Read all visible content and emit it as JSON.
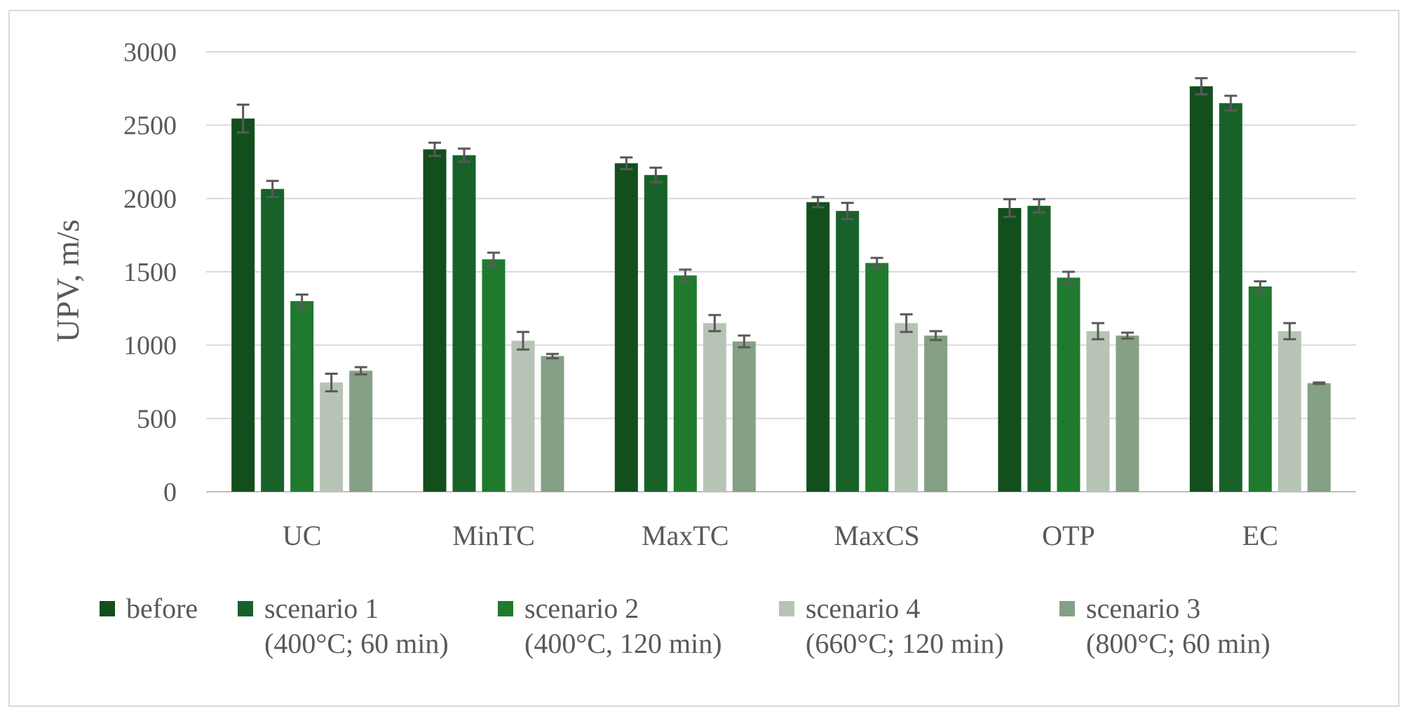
{
  "chart_data": {
    "type": "bar",
    "title": "",
    "xlabel": "",
    "ylabel": "UPV, m/s",
    "ylim": [
      0,
      3000
    ],
    "yticks": [
      "0",
      "500",
      "1000",
      "1500",
      "2000",
      "2500",
      "3000"
    ],
    "grid": true,
    "legend_position": "bottom",
    "categories": [
      "UC",
      "MinTC",
      "MaxTC",
      "MaxCS",
      "OTP",
      "EC"
    ],
    "series": [
      {
        "name": "before",
        "legend_lines": [
          "before"
        ],
        "color": "#124f1d",
        "values": [
          2545,
          2335,
          2240,
          1975,
          1935,
          2765
        ],
        "errors": [
          95,
          45,
          40,
          35,
          60,
          55
        ]
      },
      {
        "name": "scenario 1 (400°C; 60 min)",
        "legend_lines": [
          "scenario 1",
          "(400°C; 60 min)"
        ],
        "color": "#18622a",
        "values": [
          2065,
          2295,
          2160,
          1915,
          1950,
          2650
        ],
        "errors": [
          55,
          45,
          50,
          55,
          45,
          50
        ]
      },
      {
        "name": "scenario 2 (400°C, 120 min)",
        "legend_lines": [
          "scenario 2",
          "(400°C, 120 min)"
        ],
        "color": "#1f7a2e",
        "values": [
          1300,
          1585,
          1475,
          1560,
          1460,
          1400
        ],
        "errors": [
          45,
          45,
          40,
          35,
          40,
          35
        ]
      },
      {
        "name": "scenario 4 (660°C; 120 min)",
        "legend_lines": [
          "scenario 4",
          "(660°C; 120 min)"
        ],
        "color": "#b7c4b5",
        "values": [
          745,
          1030,
          1150,
          1150,
          1095,
          1095
        ],
        "errors": [
          60,
          60,
          55,
          60,
          55,
          55
        ]
      },
      {
        "name": "scenario 3 (800°C; 60 min)",
        "legend_lines": [
          "scenario 3",
          "(800°C; 60 min)"
        ],
        "color": "#85a085",
        "values": [
          825,
          925,
          1025,
          1065,
          1065,
          740
        ],
        "errors": [
          25,
          15,
          40,
          30,
          20,
          5
        ]
      }
    ]
  }
}
